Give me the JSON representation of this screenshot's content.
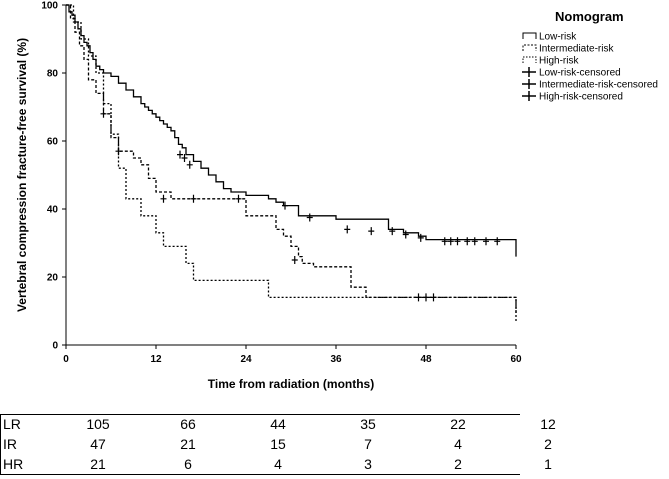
{
  "chart_data": {
    "type": "line",
    "subtype": "kaplan-meier step",
    "xlabel": "Time from radiation (months)",
    "ylabel": "Vertebral compression fracture-free survival (%)",
    "xlim": [
      0,
      60
    ],
    "ylim": [
      0,
      100
    ],
    "x_ticks": [
      0,
      12,
      24,
      36,
      48,
      60
    ],
    "y_ticks": [
      0,
      20,
      40,
      60,
      80,
      100
    ],
    "x_tick_labels": [
      "0",
      "12",
      "24",
      "36",
      "48",
      "60"
    ],
    "y_tick_labels": [
      "0",
      "20",
      "40",
      "60",
      "80",
      "100"
    ],
    "legend": {
      "title": "Nomogram",
      "position": "top-right",
      "entries": [
        "Low-risk",
        "Intermediate-risk",
        "High-risk",
        "Low-risk-censored",
        "Intermediate-risk-censored",
        "High-risk-censored"
      ]
    },
    "series": [
      {
        "name": "Low-risk",
        "style": "solid",
        "x": [
          0,
          0.4,
          0.8,
          1.2,
          1.6,
          2,
          2.4,
          2.8,
          3.2,
          3.6,
          4,
          4.5,
          5,
          6,
          7,
          8,
          9,
          10,
          10.5,
          11,
          11.5,
          12,
          12.5,
          13,
          13.5,
          14,
          14.5,
          15,
          15.5,
          16,
          17,
          18,
          19,
          20,
          21,
          22,
          24,
          27,
          28,
          29,
          31,
          32,
          36,
          43,
          45,
          47,
          48,
          54,
          60,
          60
        ],
        "y": [
          100,
          98,
          97,
          95,
          93,
          91,
          89,
          88,
          86,
          84,
          82,
          81,
          80,
          79,
          77,
          75,
          73,
          71,
          70,
          69,
          68,
          67,
          66,
          65,
          64,
          63,
          61,
          59,
          58,
          56,
          54,
          52,
          50,
          48,
          46,
          45,
          44,
          43,
          42,
          41,
          38,
          38,
          37,
          34,
          33,
          32,
          31,
          31,
          26,
          26
        ],
        "censored": [
          [
            15.2,
            56
          ],
          [
            15.8,
            55
          ],
          [
            16.5,
            53
          ],
          [
            23,
            43
          ],
          [
            29.2,
            41
          ],
          [
            32.5,
            37.5
          ],
          [
            37.5,
            34
          ],
          [
            40.7,
            33.5
          ],
          [
            43.5,
            33.5
          ],
          [
            45.3,
            32.5
          ],
          [
            47.3,
            31.5
          ],
          [
            50.5,
            30.5
          ],
          [
            51.3,
            30.5
          ],
          [
            52.2,
            30.5
          ],
          [
            53.5,
            30.5
          ],
          [
            54.5,
            30.5
          ],
          [
            56,
            30.5
          ],
          [
            57.5,
            30.5
          ]
        ]
      },
      {
        "name": "Intermediate-risk",
        "style": "dashed",
        "x": [
          0,
          0.6,
          1.2,
          1.8,
          2.4,
          3,
          4,
          5,
          6,
          7,
          9,
          10,
          11,
          12,
          14,
          24,
          28,
          29,
          30,
          31,
          31.5,
          33,
          38,
          40,
          54,
          60
        ],
        "y": [
          100,
          96,
          92,
          88,
          84,
          78,
          74,
          68,
          61,
          57,
          55,
          53,
          49,
          45,
          43,
          38,
          34,
          32,
          29,
          26,
          24,
          23,
          17,
          14,
          14,
          9
        ],
        "censored": [
          [
            5,
            68
          ],
          [
            7,
            57
          ],
          [
            13,
            43
          ],
          [
            17,
            43
          ],
          [
            30.5,
            25
          ],
          [
            47,
            14
          ],
          [
            48,
            14
          ],
          [
            49,
            14
          ]
        ]
      },
      {
        "name": "High-risk",
        "style": "dotted",
        "x": [
          0,
          1,
          2,
          3,
          4,
          5,
          6,
          7,
          8,
          10,
          12,
          13,
          16,
          17,
          19,
          27,
          36,
          38,
          44,
          47,
          60
        ],
        "y": [
          100,
          95,
          90,
          85,
          80,
          71,
          62,
          52,
          43,
          38,
          33,
          29,
          24,
          19,
          19,
          14,
          14,
          14,
          14,
          14,
          7
        ],
        "censored": []
      }
    ],
    "risk_table": {
      "times": [
        "0",
        "12",
        "24",
        "36",
        "48",
        "60"
      ],
      "rows": [
        {
          "label": "LR",
          "values": [
            "105",
            "66",
            "44",
            "35",
            "22",
            "12"
          ]
        },
        {
          "label": "IR",
          "values": [
            "47",
            "21",
            "15",
            "7",
            "4",
            "2"
          ]
        },
        {
          "label": "HR",
          "values": [
            "21",
            "6",
            "4",
            "3",
            "2",
            "1"
          ]
        }
      ]
    }
  }
}
